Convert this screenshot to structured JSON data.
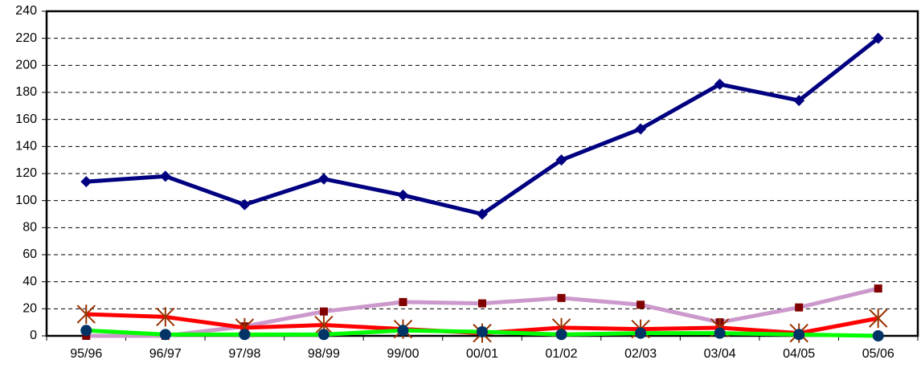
{
  "chart_data": {
    "type": "line",
    "categories": [
      "95/96",
      "96/97",
      "97/98",
      "98/99",
      "99/00",
      "00/01",
      "01/02",
      "02/03",
      "03/04",
      "04/05",
      "05/06"
    ],
    "series": [
      {
        "color": "#cc99cc",
        "marker": "square",
        "marker_color": "#800000",
        "values": [
          0,
          0,
          7,
          18,
          25,
          24,
          28,
          23,
          10,
          21,
          35
        ]
      },
      {
        "color": "#ff0000",
        "marker": "star",
        "marker_color": "#993300",
        "values": [
          16,
          14,
          6,
          8,
          5,
          2,
          6,
          5,
          6,
          2,
          13
        ]
      },
      {
        "color": "#00ff00",
        "marker": "circle",
        "marker_color": "#003366",
        "values": [
          4,
          1,
          1,
          1,
          4,
          3,
          1,
          2,
          2,
          1,
          0
        ]
      },
      {
        "color": "#000080",
        "marker": "diamond",
        "marker_color": "#000080",
        "values": [
          114,
          118,
          97,
          116,
          104,
          90,
          130,
          153,
          186,
          174,
          220
        ]
      }
    ],
    "ylim": [
      0,
      240
    ],
    "yticks": [
      0,
      20,
      40,
      60,
      80,
      100,
      120,
      140,
      160,
      180,
      200,
      220,
      240
    ],
    "grid": true
  }
}
